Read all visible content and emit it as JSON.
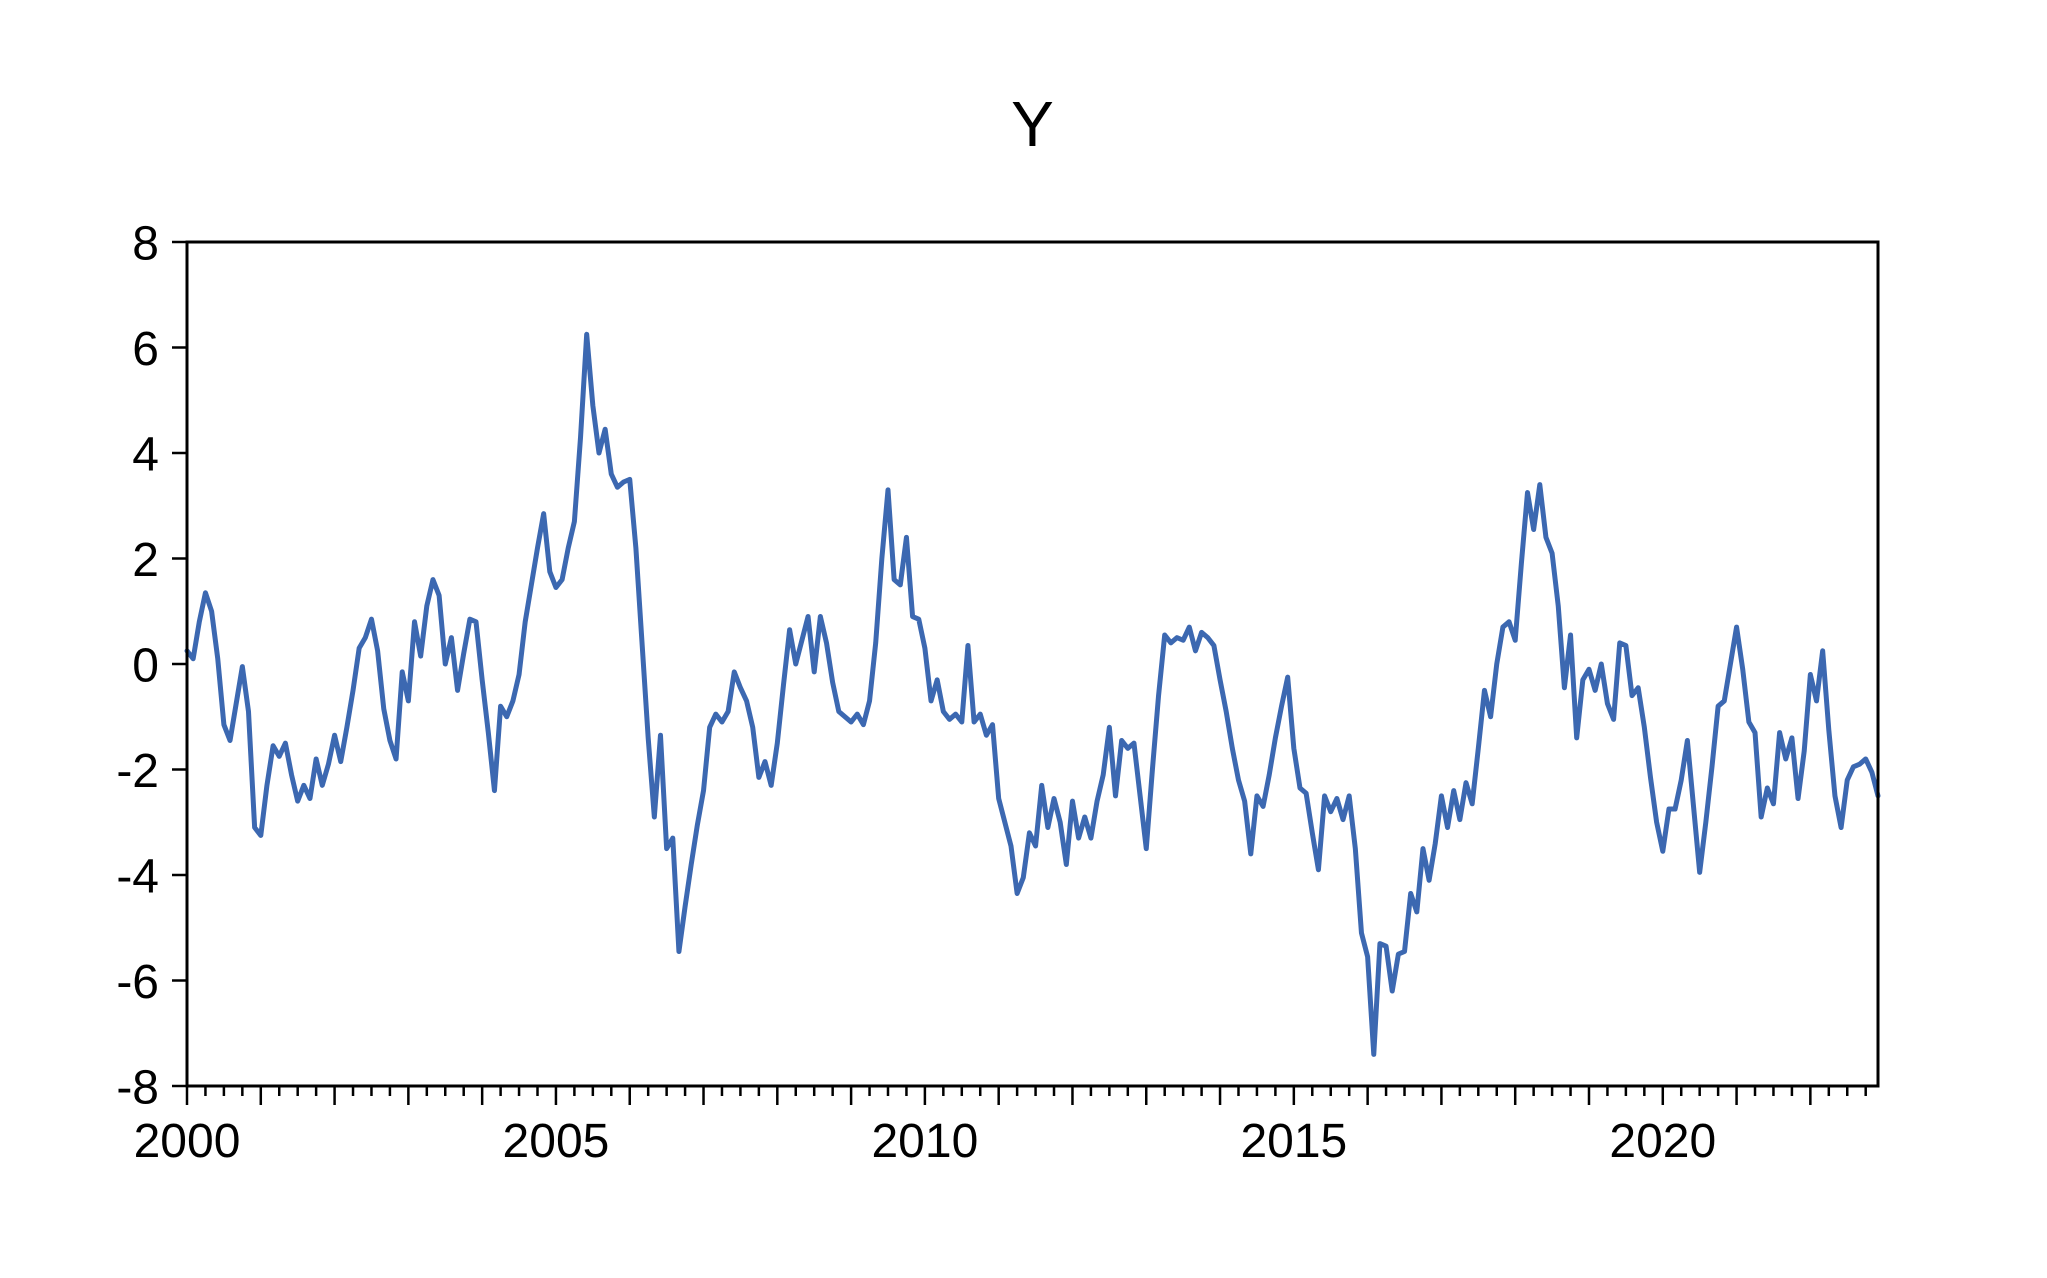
{
  "chart_data": {
    "type": "line",
    "title": "Y",
    "series_name": "Y",
    "frequency": "monthly",
    "line_color": "#3C68B1",
    "frame_color": "#000000",
    "background_color": "#ffffff",
    "legend": "none",
    "grid": "off",
    "xlabel": "",
    "ylabel": "",
    "x_start": 2000.0,
    "x_end": 2022.9167,
    "ylim": [
      -8,
      8
    ],
    "y_ticks": [
      8,
      6,
      4,
      2,
      0,
      -2,
      -4,
      -6,
      -8
    ],
    "x_major_tick_start_year": 2000,
    "x_major_tick_end_year": 2022,
    "x_minor_tick_interval_years": 0.25,
    "x_label_years": [
      "2000",
      "2005",
      "2010",
      "2015",
      "2020"
    ],
    "values": [
      0.25,
      0.1,
      0.8,
      1.35,
      1.0,
      0.1,
      -1.15,
      -1.45,
      -0.75,
      -0.05,
      -0.9,
      -3.1,
      -3.25,
      -2.3,
      -1.55,
      -1.75,
      -1.5,
      -2.1,
      -2.6,
      -2.3,
      -2.55,
      -1.8,
      -2.3,
      -1.9,
      -1.35,
      -1.85,
      -1.2,
      -0.5,
      0.3,
      0.5,
      0.85,
      0.25,
      -0.85,
      -1.45,
      -1.8,
      -0.15,
      -0.7,
      0.8,
      0.15,
      1.1,
      1.6,
      1.3,
      0.0,
      0.5,
      -0.5,
      0.2,
      0.85,
      0.8,
      -0.3,
      -1.3,
      -2.4,
      -0.8,
      -1.0,
      -0.7,
      -0.2,
      0.8,
      1.5,
      2.2,
      2.85,
      1.75,
      1.45,
      1.6,
      2.2,
      2.7,
      4.3,
      6.25,
      4.9,
      4.0,
      4.45,
      3.6,
      3.35,
      3.45,
      3.5,
      2.2,
      0.4,
      -1.4,
      -2.9,
      -1.35,
      -3.5,
      -3.3,
      -5.45,
      -4.6,
      -3.8,
      -3.05,
      -2.4,
      -1.2,
      -0.95,
      -1.1,
      -0.9,
      -0.15,
      -0.45,
      -0.7,
      -1.2,
      -2.15,
      -1.85,
      -2.3,
      -1.5,
      -0.4,
      0.65,
      0.0,
      0.45,
      0.9,
      -0.15,
      0.9,
      0.4,
      -0.35,
      -0.9,
      -1.0,
      -1.1,
      -0.95,
      -1.15,
      -0.7,
      0.4,
      2.0,
      3.3,
      1.6,
      1.5,
      2.4,
      0.9,
      0.85,
      0.3,
      -0.7,
      -0.3,
      -0.9,
      -1.05,
      -0.95,
      -1.1,
      0.35,
      -1.1,
      -0.95,
      -1.35,
      -1.15,
      -2.55,
      -3.0,
      -3.45,
      -4.35,
      -4.05,
      -3.2,
      -3.45,
      -2.3,
      -3.1,
      -2.55,
      -3.0,
      -3.8,
      -2.6,
      -3.3,
      -2.9,
      -3.3,
      -2.6,
      -2.1,
      -1.2,
      -2.5,
      -1.45,
      -1.6,
      -1.5,
      -2.5,
      -3.5,
      -2.0,
      -0.6,
      0.55,
      0.4,
      0.5,
      0.45,
      0.7,
      0.25,
      0.6,
      0.5,
      0.35,
      -0.3,
      -0.9,
      -1.6,
      -2.2,
      -2.6,
      -3.6,
      -2.5,
      -2.7,
      -2.1,
      -1.4,
      -0.8,
      -0.25,
      -1.6,
      -2.35,
      -2.45,
      -3.2,
      -3.9,
      -2.5,
      -2.8,
      -2.55,
      -2.95,
      -2.5,
      -3.5,
      -5.1,
      -5.55,
      -7.4,
      -5.3,
      -5.35,
      -6.2,
      -5.5,
      -5.45,
      -4.35,
      -4.7,
      -3.5,
      -4.1,
      -3.4,
      -2.5,
      -3.1,
      -2.4,
      -2.95,
      -2.25,
      -2.65,
      -1.6,
      -0.5,
      -1.0,
      0.0,
      0.7,
      0.8,
      0.45,
      1.9,
      3.25,
      2.55,
      3.4,
      2.4,
      2.1,
      1.1,
      -0.45,
      0.55,
      -1.4,
      -0.3,
      -0.1,
      -0.5,
      0.0,
      -0.75,
      -1.05,
      0.4,
      0.35,
      -0.6,
      -0.45,
      -1.2,
      -2.15,
      -3.0,
      -3.55,
      -2.75,
      -2.75,
      -2.2,
      -1.45,
      -2.7,
      -3.95,
      -3.0,
      -1.95,
      -0.8,
      -0.7,
      0.0,
      0.7,
      -0.1,
      -1.1,
      -1.3,
      -2.9,
      -2.35,
      -2.65,
      -1.3,
      -1.8,
      -1.4,
      -2.55,
      -1.65,
      -0.2,
      -0.7,
      0.25,
      -1.25,
      -2.5,
      -3.1,
      -2.2,
      -1.95,
      -1.9,
      -1.8,
      -2.05,
      -2.5
    ]
  }
}
